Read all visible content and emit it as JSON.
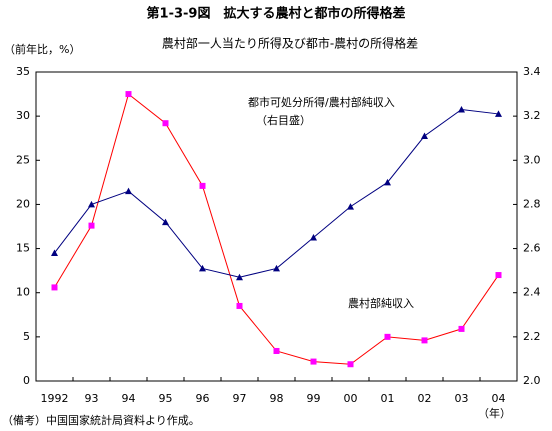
{
  "chart_data": {
    "type": "line",
    "title": "第1-3-9図　拡大する農村と都市の所得格差",
    "subtitle": "農村部一人当たり所得及び都市-農村の所得格差",
    "y_label": "（前年比，%）",
    "x_label": "（年）",
    "note": "（備考）中国国家統計局資料より作成。",
    "y2_annotation": "（右目盛）",
    "categories": [
      "1992",
      "93",
      "94",
      "95",
      "96",
      "97",
      "98",
      "99",
      "00",
      "01",
      "02",
      "03",
      "04"
    ],
    "series": [
      {
        "name": "農村部純収入",
        "color": "#ff00ff",
        "line_color": "#ff0000",
        "marker": "square",
        "values": [
          10.6,
          17.6,
          32.5,
          29.2,
          22.1,
          8.5,
          3.4,
          2.2,
          1.9,
          5.0,
          4.6,
          5.9,
          12.0
        ]
      },
      {
        "name": "都市可処分所得/農村部純収入",
        "color": "#000080",
        "line_color": "#000080",
        "marker": "triangle",
        "axis": "y2",
        "values": [
          2.58,
          2.8,
          2.86,
          2.72,
          2.51,
          2.47,
          2.51,
          2.65,
          2.79,
          2.9,
          3.11,
          3.23,
          3.21
        ]
      }
    ],
    "ylim": [
      0,
      35
    ],
    "yticks": [
      0,
      5,
      10,
      15,
      20,
      25,
      30,
      35
    ],
    "y2lim": [
      2,
      3.4
    ],
    "y2ticks": [
      {
        "value": 2,
        "label": "2.0"
      },
      2.2,
      2.4,
      2.6,
      2.8,
      {
        "value": 3,
        "label": "3.0"
      },
      3.2,
      3.4
    ],
    "grid": false
  }
}
